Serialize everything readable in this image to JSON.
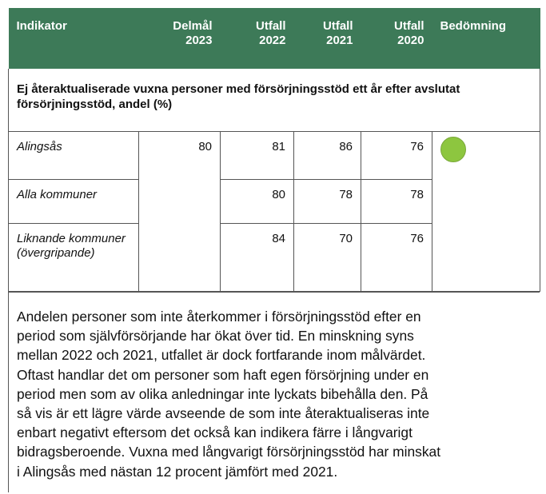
{
  "header": {
    "columns": [
      "Indikator",
      "Delmål 2023",
      "Utfall 2022",
      "Utfall 2021",
      "Utfall 2020",
      "Bedömning"
    ]
  },
  "section_title": "Ej återaktualiserade vuxna personer med försörjningsstöd ett år efter avslutat försörjningsstöd, andel (%)",
  "target": 80,
  "rows": [
    {
      "label": "Alingsås",
      "values": [
        81,
        86,
        76
      ]
    },
    {
      "label": "Alla kommuner",
      "values": [
        80,
        78,
        78
      ]
    },
    {
      "label": "Liknande kommuner (övergripande)",
      "values": [
        84,
        70,
        76
      ]
    }
  ],
  "comment": [
    "Andelen personer som inte återkommer i försörjningsstöd efter en",
    "period som självförsörjande har ökat över tid. En minskning syns",
    "mellan 2022 och 2021, utfallet är dock fortfarande inom målvärdet.",
    "Oftast handlar det om personer som haft egen försörjning under en",
    "period men som av olika anledningar inte lyckats bibehålla den. På",
    "så vis är ett lägre värde avseende de som inte återaktualiseras inte",
    "enbart negativt eftersom det också kan indikera färre i långvarigt",
    "bidragsberoende. Vuxna med långvarigt försörjningsstöd har minskat",
    "i Alingsås med nästan 12 procent jämfört med 2021."
  ]
}
